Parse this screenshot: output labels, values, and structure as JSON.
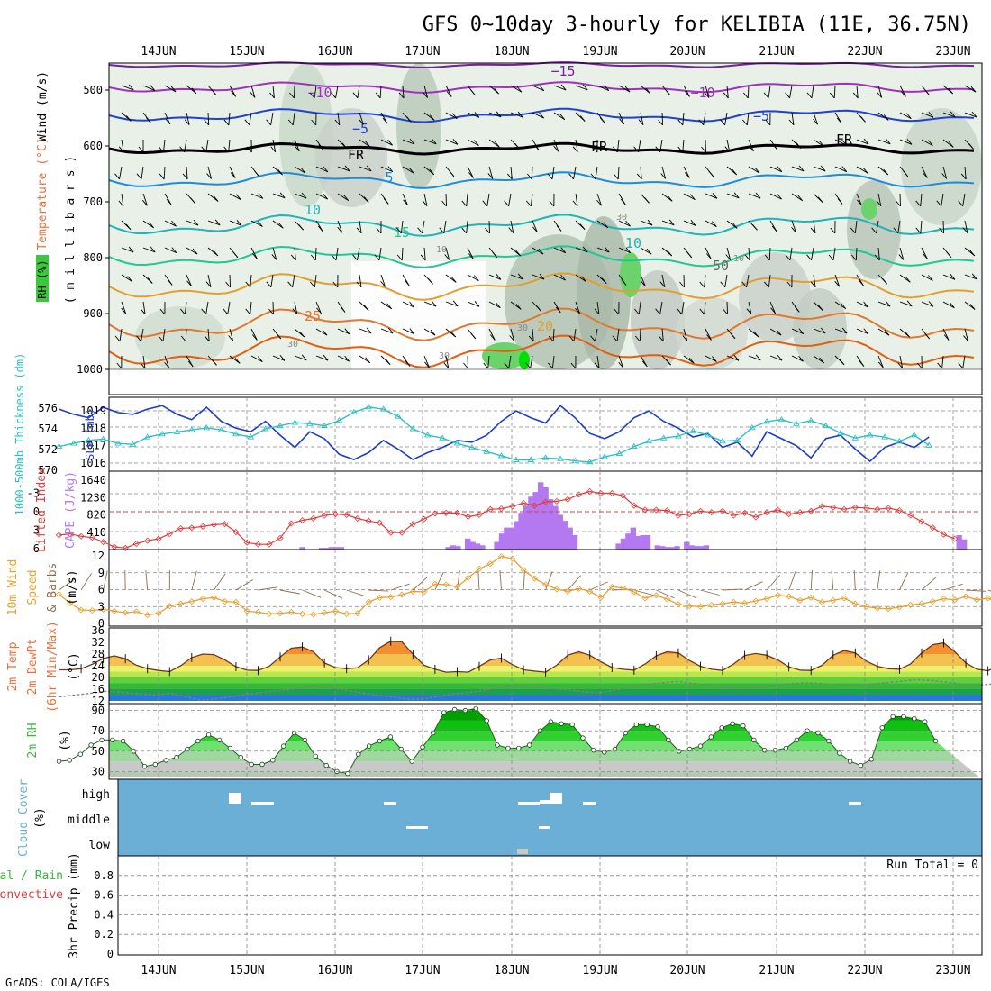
{
  "title": "GFS 0~10day 3-hourly for KELIBIA (11E, 36.75N)",
  "credit": "GrADS: COLA/IGES",
  "days": [
    "14JUN",
    "15JUN",
    "16JUN",
    "17JUN",
    "18JUN",
    "19JUN",
    "20JUN",
    "21JUN",
    "22JUN",
    "23JUN"
  ],
  "colors": {
    "rh": "#3cb43c",
    "temperature": "#e8703c",
    "wind": "#8c3cc8",
    "thickness": "#30c0c0",
    "slp": "#1e3cc8",
    "lifted_index": "#e03c3c",
    "cape": "#b478f0",
    "speed": "#e8a030",
    "barbs": "#8b6c50",
    "cloud_bg": "#6baed6",
    "frame": "#000000"
  },
  "panels": {
    "upper_air": {
      "labels": {
        "rh": "RH (%)",
        "temperature": "Temperature (°C)",
        "wind": "Wind (m/s)",
        "mb": "( m i l l i b a r s )"
      },
      "yticks": [
        "500",
        "600",
        "700",
        "800",
        "900",
        "1000"
      ],
      "contour_labels": [
        "−15",
        "−10",
        "−10",
        "−5",
        "−5",
        "FR",
        "FR",
        "FR",
        "5",
        "10",
        "10",
        "15",
        "20",
        "25",
        "10",
        "10",
        "30",
        "30",
        "30",
        "30",
        "50"
      ]
    },
    "slp": {
      "labels": {
        "thickness": "1000-500mb Thickness (dm)",
        "slp": "SLP (mb)"
      },
      "thickness_ticks": [
        "576",
        "574",
        "572",
        "570"
      ],
      "slp_ticks": [
        "1019",
        "1018",
        "1017",
        "1016"
      ]
    },
    "cape": {
      "labels": {
        "lifted": "Lifted Index",
        "cape": "CAPE (J/kg)"
      },
      "li_ticks": [
        "-3",
        "0",
        "3",
        "6"
      ],
      "cape_ticks": [
        "1640",
        "1230",
        "820",
        "410"
      ]
    },
    "wind10": {
      "labels": {
        "main": "10m Wind",
        "sub": "Speed & Barbs",
        "unit": "(m/s)"
      },
      "yticks": [
        "12",
        "9",
        "6",
        "3",
        "0"
      ]
    },
    "temp2m": {
      "labels": {
        "main": "2m Temp",
        "sub": "2m DewPt",
        "sub2": "(6hr Min/Max)",
        "unit": "(°C)"
      },
      "yticks": [
        "36",
        "32",
        "28",
        "24",
        "20",
        "16",
        "12"
      ]
    },
    "rh2m": {
      "labels": {
        "main": "2m RH",
        "unit": "(%)"
      },
      "yticks": [
        "90",
        "70",
        "50",
        "30"
      ]
    },
    "cloud": {
      "labels": {
        "main": "Cloud Cover",
        "unit": "(%)"
      },
      "levels": [
        "high",
        "middle",
        "low"
      ]
    },
    "precip": {
      "labels": {
        "main": "3hr Precip (mm)",
        "total": "Total / Rain",
        "conv": "Convective"
      },
      "yticks": [
        "0.8",
        "0.6",
        "0.4",
        "0.2",
        "0"
      ],
      "run_total": "Run Total = 0"
    }
  },
  "chart_data": [
    {
      "type": "line",
      "title": "1000-500mb Thickness (dm) / SLP (mb)",
      "x_start": "13JUN 21Z",
      "x_step_hours": 6,
      "series": [
        {
          "name": "SLP (mb)",
          "values": [
            1019.1,
            1018.8,
            1018.6,
            1019.2,
            1018.9,
            1018.8,
            1019.1,
            1019.3,
            1018.8,
            1018.5,
            1019.2,
            1018.4,
            1018.0,
            1017.8,
            1018.4,
            1017.6,
            1016.9,
            1017.8,
            1017.4,
            1016.5,
            1016.2,
            1016.6,
            1017.3,
            1016.8,
            1016.2,
            1016.6,
            1016.9,
            1017.3,
            1017.2,
            1017.6,
            1018.4,
            1019.0,
            1018.6,
            1018.3,
            1019.3,
            1018.6,
            1017.7,
            1017.4,
            1017.8,
            1018.6,
            1019.0,
            1018.4,
            1018.0,
            1017.5,
            1017.7,
            1016.9,
            1017.2,
            1016.4,
            1017.8,
            1017.4,
            1017.0,
            1016.3,
            1017.4,
            1017.6,
            1016.8,
            1016.1,
            1016.9,
            1017.2,
            1016.9,
            1017.5
          ]
        },
        {
          "name": "1000-500mb Thickness (dm)",
          "values": [
            572.3,
            572.6,
            572.9,
            573.0,
            572.6,
            572.5,
            573.2,
            573.5,
            573.7,
            573.9,
            574.1,
            573.9,
            573.5,
            573.2,
            574.0,
            574.3,
            574.6,
            574.5,
            574.3,
            574.8,
            575.6,
            576.1,
            575.9,
            575.2,
            574.0,
            573.4,
            573.1,
            572.6,
            572.2,
            571.8,
            571.4,
            571.0,
            571.0,
            571.2,
            571.1,
            570.9,
            570.8,
            571.3,
            571.6,
            572.3,
            572.8,
            573.1,
            573.3,
            573.8,
            573.4,
            572.8,
            572.9,
            574.1,
            574.7,
            574.9,
            574.5,
            574.8,
            574.3,
            573.6,
            573.1,
            573.4,
            573.2,
            572.8,
            573.4,
            572.4
          ]
        }
      ]
    },
    {
      "type": "bar",
      "title": "Lifted Index / CAPE (J/kg)",
      "x_start": "13JUN 21Z",
      "x_step_hours": 3,
      "series": [
        {
          "name": "CAPE (J/kg)",
          "values": [
            0,
            0,
            0,
            0,
            0,
            0,
            0,
            0,
            0,
            0,
            0,
            0,
            0,
            0,
            0,
            0,
            0,
            0,
            0,
            0,
            0,
            0,
            0,
            0,
            0,
            0,
            0,
            0,
            0,
            0,
            0,
            0,
            0,
            0,
            0,
            0,
            0,
            0,
            0,
            0,
            0,
            0,
            0,
            0,
            0,
            0,
            0,
            0,
            0,
            0,
            60,
            0,
            0,
            0,
            40,
            40,
            60,
            60,
            60,
            0,
            0,
            0,
            0,
            0,
            0,
            0,
            0,
            0,
            0,
            0,
            0,
            0,
            0,
            0,
            0,
            0,
            0,
            0,
            0,
            0,
            60,
            100,
            80,
            0,
            260,
            180,
            140,
            100,
            0,
            0,
            180,
            380,
            520,
            520,
            670,
            870,
            1040,
            1250,
            1360,
            1590,
            1470,
            1190,
            1030,
            820,
            680,
            520,
            340,
            0,
            0,
            0,
            0,
            0,
            0,
            0,
            0,
            140,
            260,
            380,
            520,
            320,
            340,
            340,
            0,
            100,
            80,
            60,
            60,
            80,
            0,
            180,
            100,
            80,
            80,
            100,
            0,
            0,
            0,
            0,
            0,
            0,
            0,
            0,
            0,
            0,
            0,
            0,
            0,
            0,
            0,
            0,
            0,
            0,
            0,
            0,
            0,
            0,
            0,
            0,
            0,
            0,
            0,
            0,
            0,
            0,
            0,
            0,
            0,
            0,
            0,
            0,
            0,
            0,
            0,
            0,
            0,
            0,
            0,
            0,
            0,
            0,
            0,
            0,
            0,
            0,
            0,
            340,
            240,
            0,
            0,
            0,
            0
          ]
        },
        {
          "name": "Lifted Index",
          "values": [
            3.8,
            3.6,
            4.0,
            4.2,
            4.9,
            5.7,
            5.9,
            5.2,
            4.7,
            4.4,
            3.6,
            2.7,
            2.6,
            2.4,
            2.1,
            2.0,
            3.3,
            5.0,
            5.3,
            5.3,
            4.3,
            1.9,
            1.4,
            1.1,
            0.6,
            0.4,
            0.5,
            1.1,
            1.5,
            1.8,
            3.4,
            3.4,
            2.0,
            1.2,
            0.3,
            0.2,
            0.2,
            0.8,
            0.5,
            -0.4,
            -0.5,
            -0.9,
            -1.4,
            -1.0,
            -1.6,
            -1.7,
            -2.0,
            -2.8,
            -3.3,
            -3.0,
            -3.0,
            -2.6,
            -1.0,
            -0.3,
            -0.3,
            -0.2,
            0.6,
            0.4,
            -0.1,
            0.1,
            -0.1,
            0.6,
            0.2,
            0.9,
            0.1,
            -0.3,
            0.4,
            0.1,
            -0.1,
            -0.9,
            -0.7,
            -0.4,
            -0.7,
            -0.6,
            -0.4,
            -0.6,
            -0.2,
            0.6,
            1.6,
            2.6,
            3.7,
            4.4
          ]
        }
      ]
    },
    {
      "type": "line",
      "title": "10m Wind Speed (m/s)",
      "x_start": "13JUN 21Z",
      "x_step_hours": 3,
      "series": [
        {
          "name": "10m Wind Speed (m/s)",
          "values": [
            5.2,
            3.6,
            2.4,
            2.3,
            2.5,
            2.2,
            1.9,
            2.1,
            1.5,
            1.8,
            3.1,
            3.5,
            3.9,
            4.4,
            4.6,
            3.9,
            3.8,
            2.2,
            2.0,
            1.7,
            1.8,
            2.0,
            1.7,
            1.6,
            1.9,
            2.2,
            1.7,
            1.8,
            3.8,
            4.6,
            4.7,
            5.1,
            5.7,
            5.6,
            7.0,
            6.9,
            6.5,
            8.1,
            9.7,
            10.6,
            11.9,
            11.5,
            9.5,
            8.0,
            6.9,
            6.1,
            5.7,
            6.2,
            5.7,
            4.6,
            6.5,
            6.3,
            5.6,
            4.5,
            5.0,
            4.3,
            3.4,
            3.1,
            3.0,
            3.3,
            3.5,
            3.8,
            3.6,
            4.0,
            4.4,
            5.0,
            4.8,
            4.1,
            4.6,
            3.8,
            4.1,
            4.5,
            3.5,
            3.0,
            2.7,
            2.6,
            2.9,
            3.3,
            3.5,
            3.9,
            4.4,
            4.2,
            4.8,
            4.2,
            4.5,
            3.6,
            3.9,
            3.6,
            4.5,
            3.4,
            3.6,
            3.8,
            5.1,
            4.2,
            3.3,
            3.8,
            4.4,
            4.5
          ]
        }
      ]
    },
    {
      "type": "area",
      "title": "2m Temp / 2m DewPt (°C)",
      "x_start": "13JUN 21Z",
      "x_step_hours": 3,
      "series": [
        {
          "name": "2m Temp",
          "values": [
            22.6,
            22.6,
            23.0,
            24.5,
            26.5,
            27.4,
            26.4,
            24.2,
            23.0,
            22.4,
            22.0,
            24.0,
            26.8,
            28.0,
            27.8,
            26.0,
            23.7,
            22.5,
            22.4,
            23.8,
            27.0,
            30.0,
            30.4,
            28.8,
            25.0,
            23.4,
            23.0,
            23.3,
            26.0,
            30.2,
            32.4,
            32.2,
            28.0,
            24.2,
            22.8,
            21.8,
            22.0,
            21.8,
            23.8,
            26.0,
            26.6,
            24.4,
            22.6,
            22.2,
            21.8,
            24.2,
            27.6,
            28.8,
            27.6,
            25.4,
            23.4,
            22.8,
            22.5,
            24.6,
            27.4,
            28.8,
            28.4,
            25.8,
            23.8,
            22.8,
            22.4,
            24.6,
            27.5,
            28.2,
            27.6,
            26.0,
            23.6,
            22.5,
            22.4,
            24.2,
            27.6,
            29.2,
            28.4,
            25.6,
            23.8,
            23.0,
            22.8,
            24.6,
            28.4,
            31.2,
            31.8,
            28.8,
            25.0,
            22.8,
            22.3,
            24.0
          ]
        },
        {
          "name": "2m DewPt",
          "values": [
            13.4,
            14.0,
            14.6,
            15.3,
            15.0,
            14.4,
            14.0,
            14.6,
            13.4,
            12.2,
            12.8,
            13.6,
            14.4,
            15.0,
            15.6,
            16.2,
            16.8,
            16.4,
            15.8,
            14.8,
            14.0,
            13.4,
            12.6,
            12.6,
            13.6,
            14.4,
            15.0,
            15.8,
            16.6,
            17.2,
            17.0,
            16.2,
            15.8,
            15.2,
            14.8,
            15.6,
            16.6,
            17.6,
            18.2,
            18.6,
            18.0,
            17.4,
            16.6,
            16.2,
            16.6,
            17.4,
            17.8,
            18.2,
            18.0,
            17.6,
            17.4,
            17.6,
            18.2,
            18.6,
            19.2,
            19.0,
            18.4,
            17.8,
            17.4,
            17.8,
            18.4,
            19.0,
            19.4,
            19.4,
            19.0,
            18.2,
            17.6,
            17.8,
            18.6,
            19.2,
            19.4,
            19.0,
            18.2
          ]
        }
      ]
    },
    {
      "type": "area",
      "title": "2m RH (%)",
      "x_start": "13JUN 21Z",
      "x_step_hours": 3,
      "series": [
        {
          "name": "2m RH",
          "values": [
            40,
            41,
            47,
            56,
            61,
            61,
            60,
            50,
            35,
            37,
            41,
            44,
            52,
            60,
            66,
            61,
            53,
            44,
            37,
            37,
            41,
            55,
            68,
            61,
            45,
            36,
            30,
            28,
            47,
            55,
            60,
            64,
            52,
            40,
            54,
            68,
            88,
            91,
            90,
            92,
            80,
            56,
            53,
            53,
            56,
            70,
            79,
            77,
            76,
            63,
            51,
            49,
            52,
            68,
            76,
            76,
            74,
            61,
            50,
            52,
            55,
            64,
            73,
            77,
            75,
            61,
            51,
            51,
            53,
            61,
            70,
            68,
            60,
            48,
            40,
            36,
            42,
            73,
            84,
            84,
            82,
            79,
            60
          ]
        }
      ]
    }
  ]
}
